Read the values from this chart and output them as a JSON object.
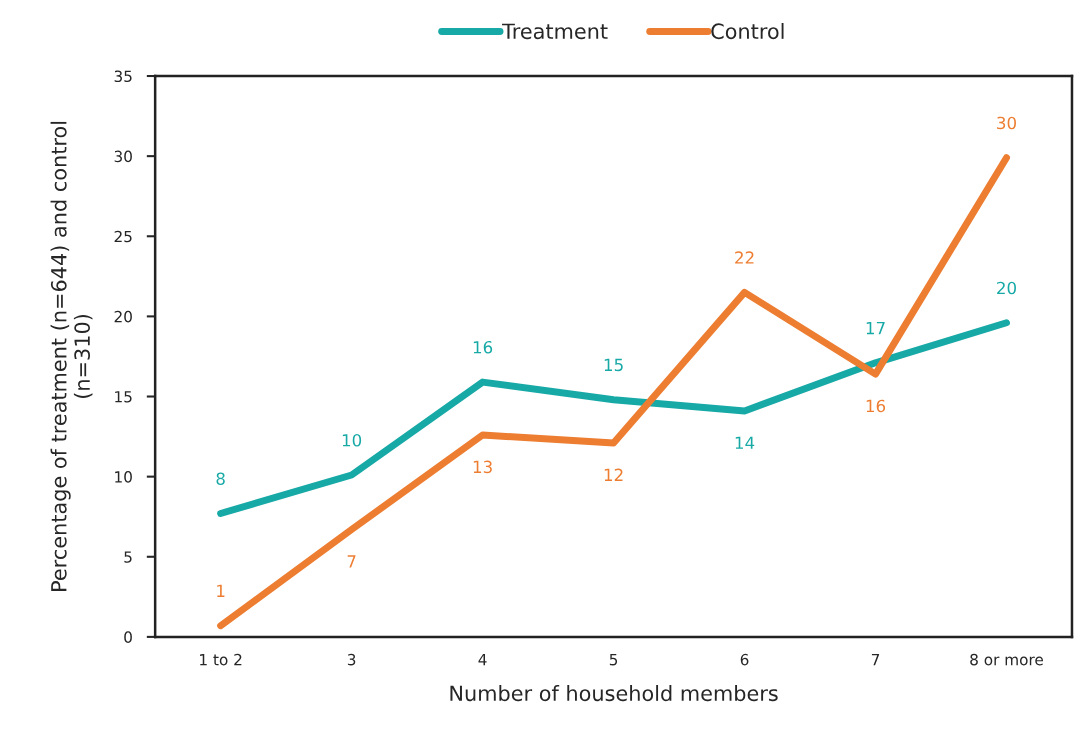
{
  "chart_data": {
    "type": "line",
    "xlabel": "Number of household members",
    "ylabel": "Percentage of treatment (n=644) and control\n(n=310)",
    "categories": [
      "1 to 2",
      "3",
      "4",
      "5",
      "6",
      "7",
      "8 or more"
    ],
    "series": [
      {
        "name": "Treatment",
        "color": "#17a9a6",
        "values": [
          7.7,
          10.1,
          15.9,
          14.8,
          14.1,
          17.1,
          19.6
        ],
        "value_labels": [
          "8",
          "10",
          "16",
          "15",
          "14",
          "17",
          "20"
        ]
      },
      {
        "name": "Control",
        "color": "#ed7d31",
        "values": [
          0.7,
          6.7,
          12.6,
          12.1,
          21.5,
          16.4,
          29.9
        ],
        "value_labels": [
          "1",
          "7",
          "13",
          "12",
          "22",
          "16",
          "30"
        ]
      }
    ],
    "ylim": [
      0,
      35
    ],
    "yticks": [
      0,
      5,
      10,
      15,
      20,
      25,
      30,
      35
    ],
    "grid": false,
    "legend": "top",
    "marker": "none",
    "line_style": "solid"
  }
}
